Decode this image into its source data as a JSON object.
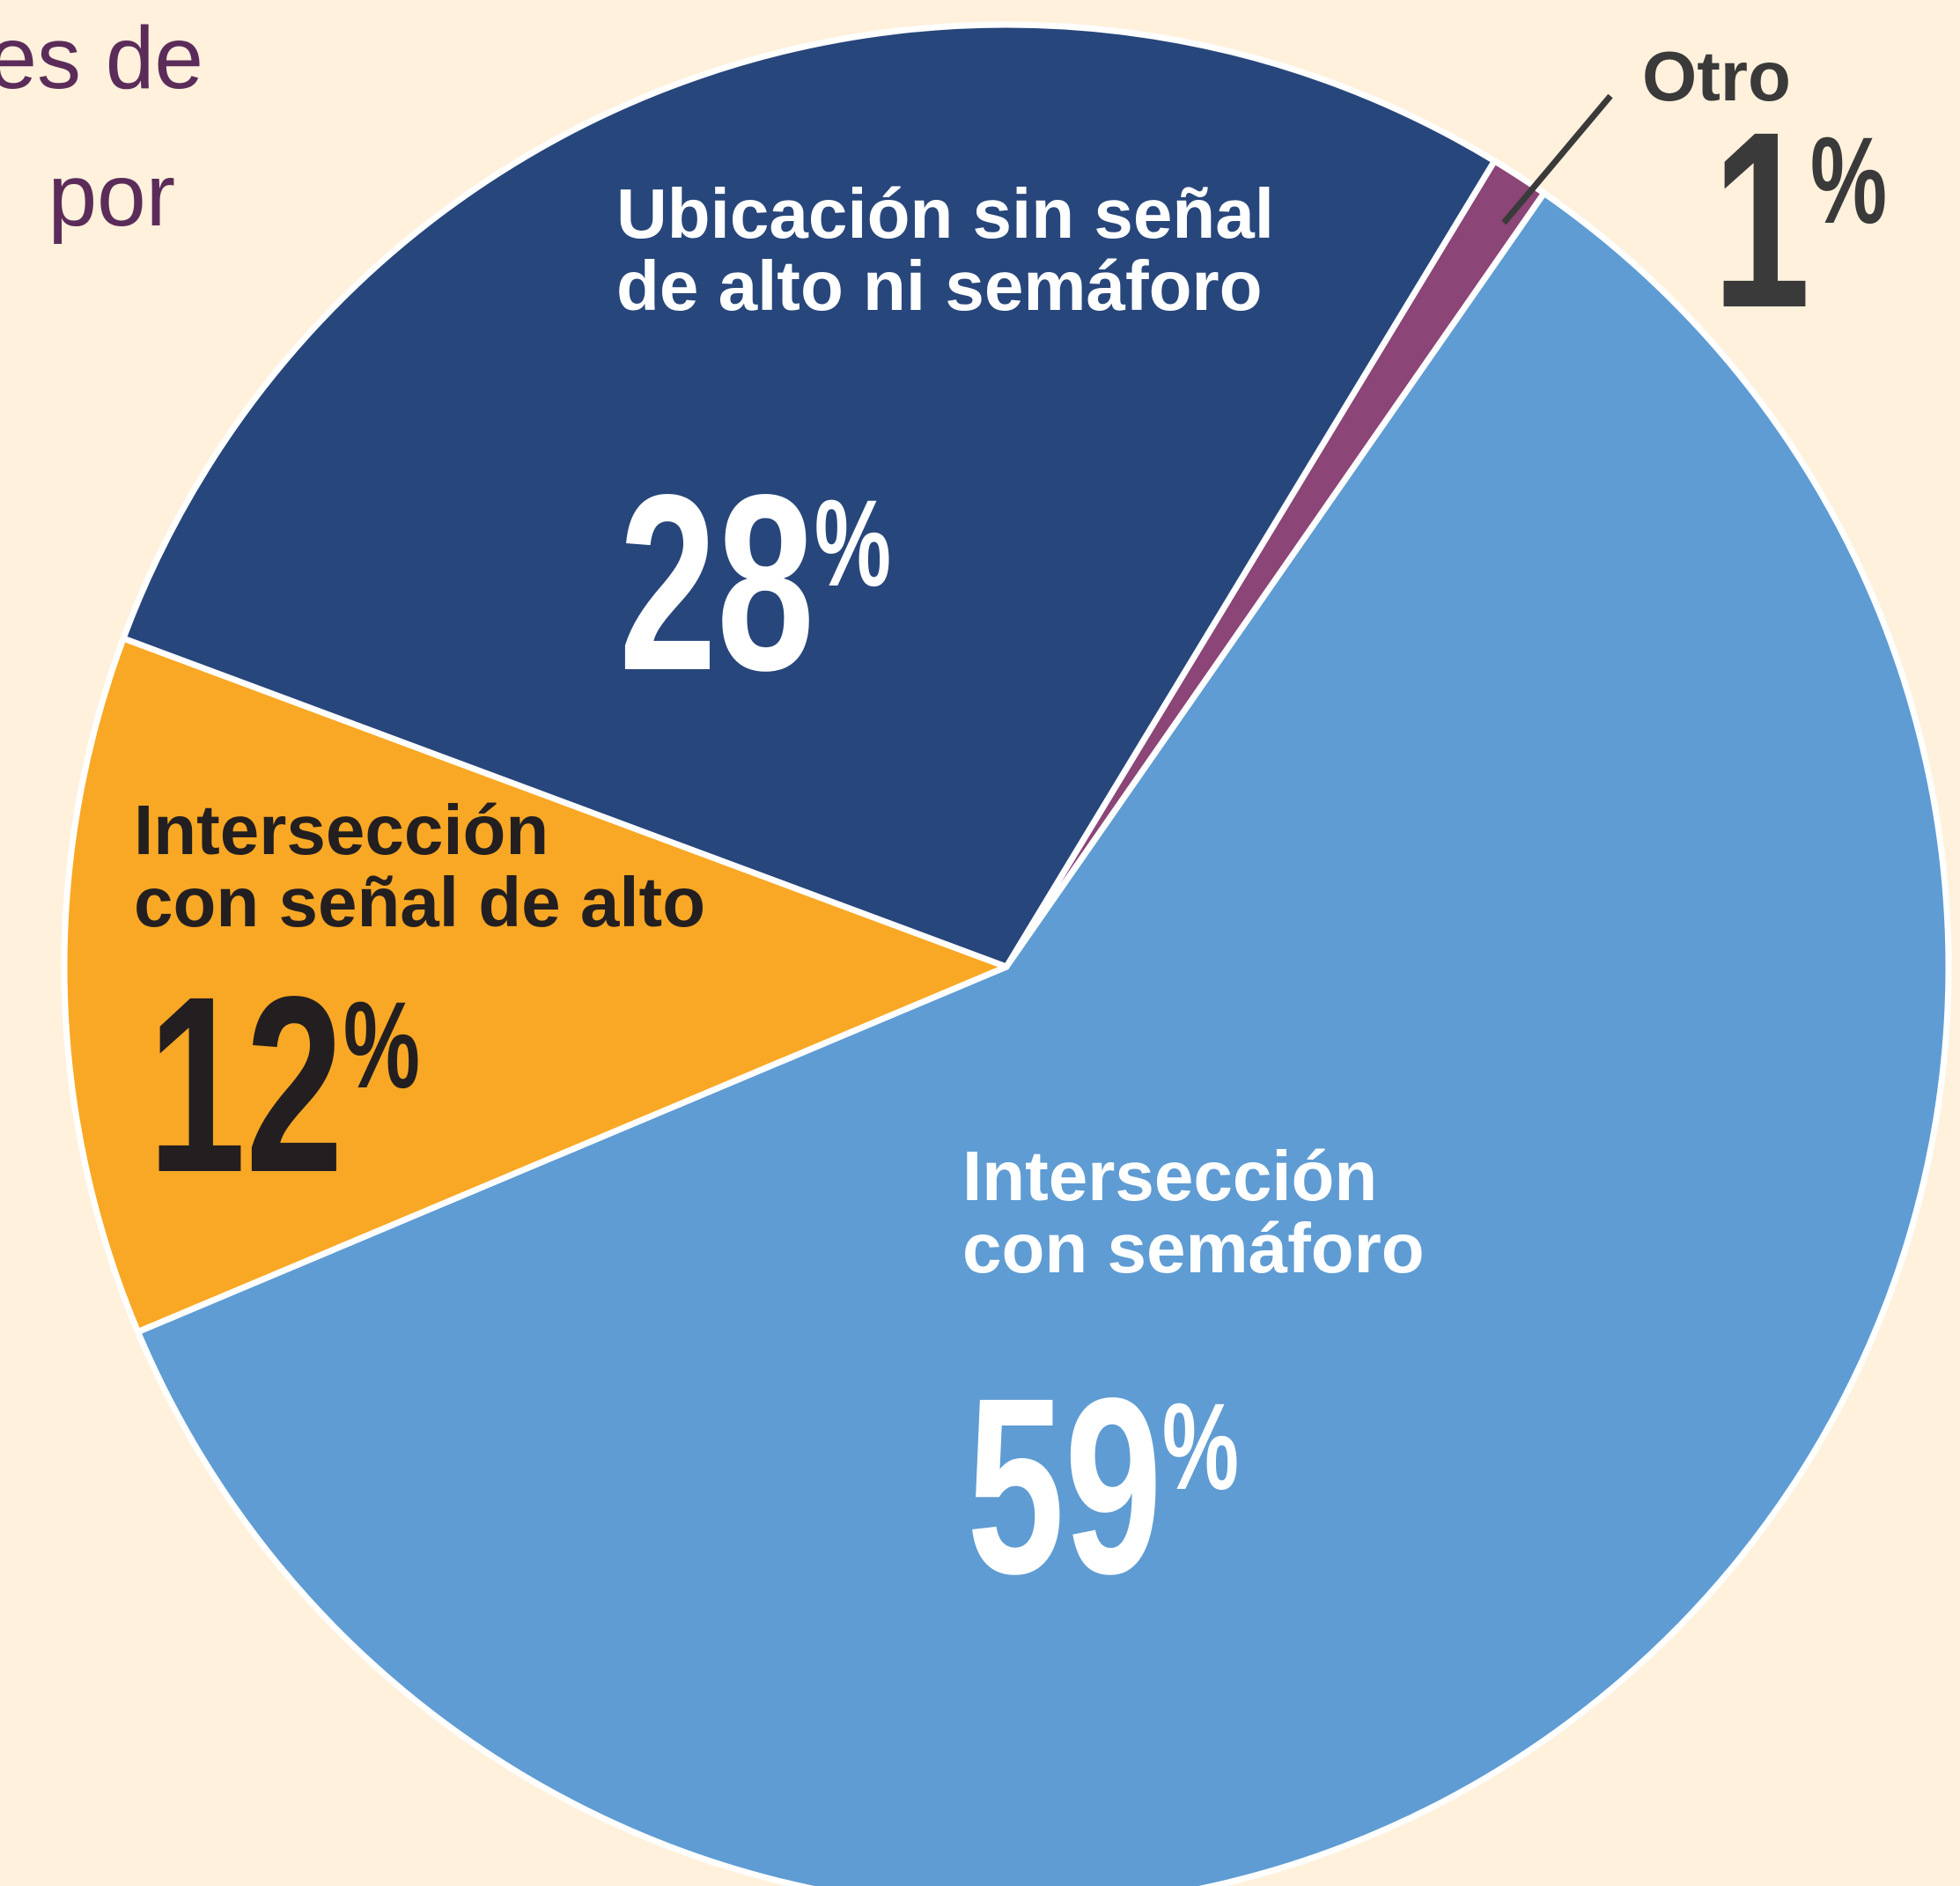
{
  "title_lines": [
    "es de",
    "por"
  ],
  "chart_data": {
    "type": "pie",
    "categories": [
      "Otro",
      "Intersección con semáforo",
      "Intersección con señal de alto",
      "Ubicación sin señal de alto ni semáforo"
    ],
    "values": [
      1,
      59,
      12,
      28
    ],
    "value_labels": [
      "1%",
      "59%",
      "12%",
      "28%"
    ],
    "colors": [
      "#8b4576",
      "#5f9cd3",
      "#f9a825",
      "#27467b"
    ]
  }
}
